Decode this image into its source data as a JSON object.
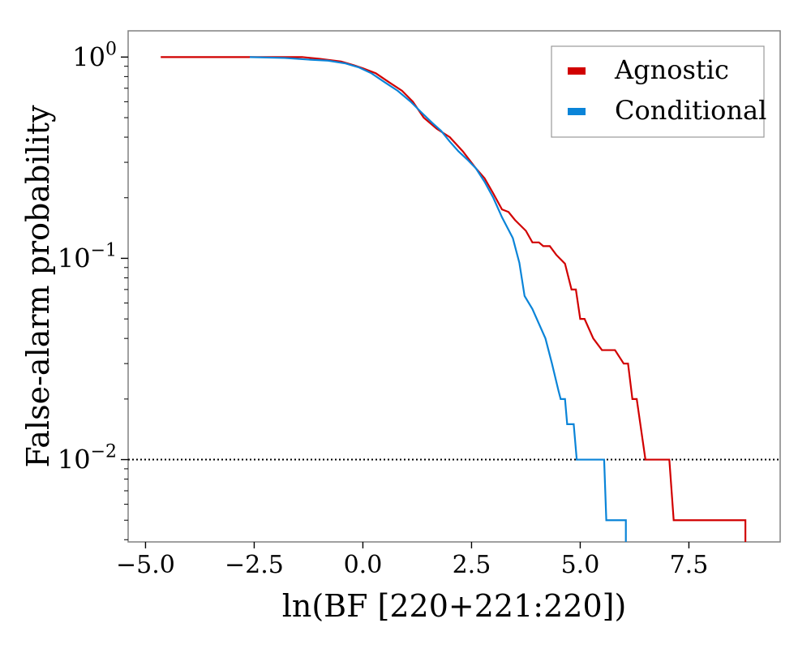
{
  "chart_data": {
    "type": "line",
    "title": "",
    "xlabel": "ln(BF [220+221:220])",
    "ylabel": "False-alarm probability",
    "xlim": [
      -5.4,
      9.6
    ],
    "ylim": [
      0.0039,
      1.35
    ],
    "yscale": "log",
    "grid": false,
    "legend_position": "top-right",
    "x_ticks": [
      {
        "value": -5.0,
        "label": "−5.0"
      },
      {
        "value": -2.5,
        "label": "−2.5"
      },
      {
        "value": 0.0,
        "label": "0.0"
      },
      {
        "value": 2.5,
        "label": "2.5"
      },
      {
        "value": 5.0,
        "label": "5.0"
      },
      {
        "value": 7.5,
        "label": "7.5"
      }
    ],
    "y_ticks": [
      {
        "value": 1,
        "base": "10",
        "exp": "0"
      },
      {
        "value": 0.1,
        "base": "10",
        "exp": "−1"
      },
      {
        "value": 0.01,
        "base": "10",
        "exp": "−2"
      }
    ],
    "threshold": {
      "value": 0.01,
      "style": "dotted",
      "color": "#000000"
    },
    "series": [
      {
        "name": "Agnostic",
        "color": "#d10000",
        "step": false,
        "points": [
          [
            -4.65,
            1.0
          ],
          [
            -2.6,
            1.0
          ],
          [
            -1.4,
            1.0
          ],
          [
            -1.0,
            0.98
          ],
          [
            -0.5,
            0.95
          ],
          [
            -0.2,
            0.91
          ],
          [
            0.0,
            0.88
          ],
          [
            0.3,
            0.83
          ],
          [
            0.6,
            0.75
          ],
          [
            0.9,
            0.68
          ],
          [
            1.15,
            0.6
          ],
          [
            1.4,
            0.5
          ],
          [
            1.7,
            0.44
          ],
          [
            2.0,
            0.4
          ],
          [
            2.3,
            0.34
          ],
          [
            2.6,
            0.28
          ],
          [
            2.8,
            0.25
          ],
          [
            3.0,
            0.21
          ],
          [
            3.2,
            0.175
          ],
          [
            3.35,
            0.17
          ],
          [
            3.5,
            0.155
          ],
          [
            3.75,
            0.137
          ],
          [
            3.9,
            0.12
          ],
          [
            4.05,
            0.12
          ],
          [
            4.15,
            0.115
          ],
          [
            4.3,
            0.115
          ],
          [
            4.45,
            0.104
          ],
          [
            4.65,
            0.094
          ],
          [
            4.8,
            0.07
          ],
          [
            4.9,
            0.07
          ],
          [
            5.0,
            0.05
          ],
          [
            5.1,
            0.05
          ],
          [
            5.3,
            0.04
          ],
          [
            5.5,
            0.035
          ],
          [
            5.8,
            0.035
          ],
          [
            6.0,
            0.03
          ],
          [
            6.1,
            0.03
          ],
          [
            6.2,
            0.02
          ],
          [
            6.3,
            0.02
          ],
          [
            6.5,
            0.01
          ],
          [
            7.05,
            0.01
          ],
          [
            7.15,
            0.005
          ],
          [
            8.8,
            0.005
          ],
          [
            8.8,
            0.0039
          ]
        ]
      },
      {
        "name": "Conditional",
        "color": "#0a84d8",
        "step": false,
        "points": [
          [
            -2.6,
            1.0
          ],
          [
            -1.8,
            0.99
          ],
          [
            -1.2,
            0.97
          ],
          [
            -0.8,
            0.96
          ],
          [
            -0.4,
            0.93
          ],
          [
            -0.1,
            0.89
          ],
          [
            0.2,
            0.83
          ],
          [
            0.5,
            0.75
          ],
          [
            0.8,
            0.68
          ],
          [
            1.1,
            0.6
          ],
          [
            1.35,
            0.53
          ],
          [
            1.6,
            0.47
          ],
          [
            1.8,
            0.43
          ],
          [
            2.0,
            0.38
          ],
          [
            2.2,
            0.34
          ],
          [
            2.4,
            0.31
          ],
          [
            2.6,
            0.28
          ],
          [
            2.8,
            0.24
          ],
          [
            3.0,
            0.2
          ],
          [
            3.2,
            0.16
          ],
          [
            3.45,
            0.126
          ],
          [
            3.6,
            0.095
          ],
          [
            3.72,
            0.065
          ],
          [
            3.9,
            0.056
          ],
          [
            4.2,
            0.04
          ],
          [
            4.35,
            0.03
          ],
          [
            4.5,
            0.022
          ],
          [
            4.55,
            0.02
          ],
          [
            4.65,
            0.02
          ],
          [
            4.7,
            0.015
          ],
          [
            4.85,
            0.015
          ],
          [
            4.92,
            0.01
          ],
          [
            5.55,
            0.01
          ],
          [
            5.6,
            0.005
          ],
          [
            6.05,
            0.005
          ],
          [
            6.05,
            0.0039
          ]
        ]
      }
    ]
  }
}
